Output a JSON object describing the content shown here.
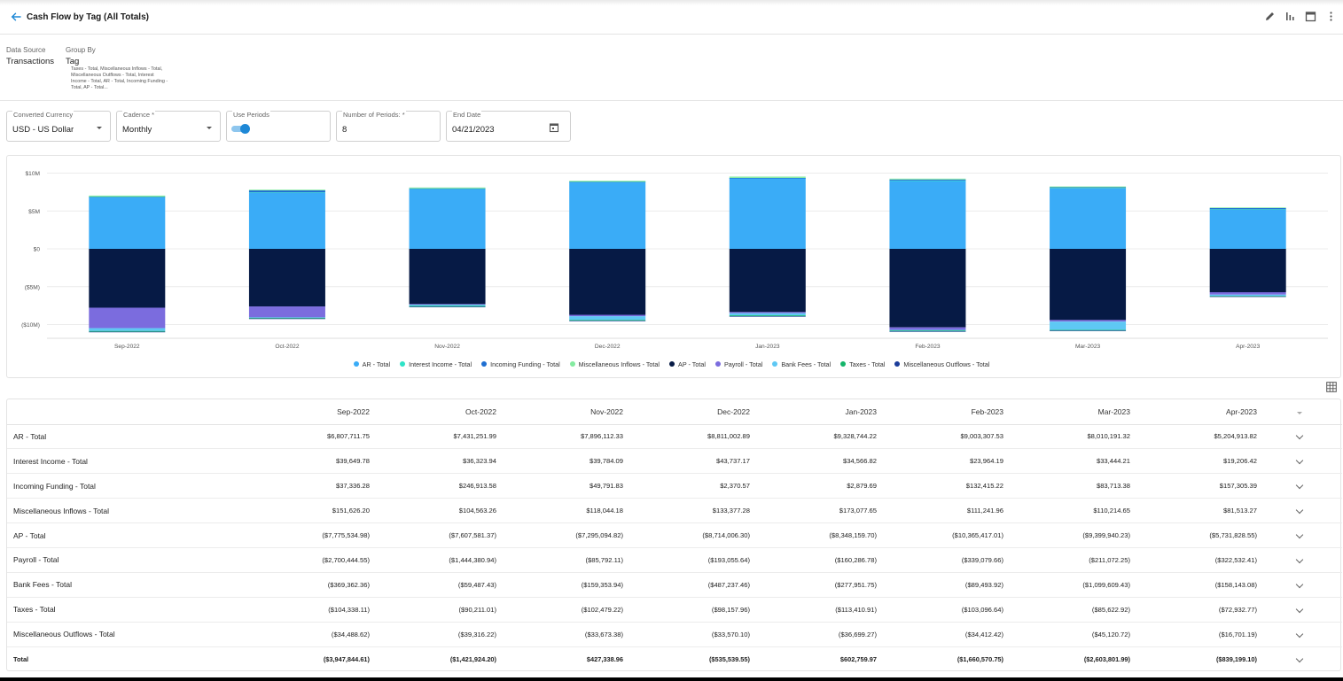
{
  "header": {
    "title": "Cash Flow by Tag (All Totals)"
  },
  "meta": {
    "data_source_label": "Data Source",
    "data_source_value": "Transactions",
    "group_by_label": "Group By",
    "group_by_value": "Tag",
    "group_by_list": "Taxes - Total, Miscellaneous Inflows - Total, Miscellaneous Outflows - Total, Interest Income - Total, AR - Total, Incoming Funding - Total, AP - Total..."
  },
  "filters": {
    "currency_label": "Converted Currency",
    "currency_value": "USD - US Dollar",
    "cadence_label": "Cadence *",
    "cadence_value": "Monthly",
    "use_periods_label": "Use Periods",
    "use_periods_on": true,
    "periods_label": "Number of Periods: *",
    "periods_value": "8",
    "end_date_label": "End Date",
    "end_date_value": "04/21/2023"
  },
  "chart_data": {
    "type": "bar",
    "stacked": true,
    "categories": [
      "Sep-2022",
      "Oct-2022",
      "Nov-2022",
      "Dec-2022",
      "Jan-2023",
      "Feb-2023",
      "Mar-2023",
      "Apr-2023"
    ],
    "ylim": [
      -11000000,
      11000000
    ],
    "yticks": [
      10000000,
      5000000,
      0,
      -5000000,
      -10000000
    ],
    "ytick_labels": [
      "$10M",
      "$5M",
      "$0",
      "($5M)",
      "($10M)"
    ],
    "grid": true,
    "legend_position": "bottom",
    "series": [
      {
        "name": "AR - Total",
        "color": "#3aacf7",
        "values": [
          6807711.75,
          7431251.99,
          7896112.33,
          8811002.89,
          9328744.22,
          9003307.53,
          8010191.32,
          5204913.82
        ]
      },
      {
        "name": "Interest Income - Total",
        "color": "#2ee3c7",
        "values": [
          39649.78,
          36323.94,
          39784.09,
          43737.17,
          34566.82,
          23964.19,
          33444.21,
          19206.42
        ]
      },
      {
        "name": "Incoming Funding - Total",
        "color": "#1f6fd1",
        "values": [
          37336.28,
          246913.58,
          49791.83,
          2370.57,
          2879.69,
          132415.22,
          83713.38,
          157305.39
        ]
      },
      {
        "name": "Miscellaneous Inflows - Total",
        "color": "#84eba0",
        "values": [
          151626.2,
          104563.26,
          118044.18,
          133377.28,
          173077.65,
          111241.96,
          110214.65,
          81513.27
        ]
      },
      {
        "name": "AP - Total",
        "color": "#061a45",
        "values": [
          -7775534.98,
          -7607581.37,
          -7295094.82,
          -8714006.3,
          -8348159.7,
          -10365417.01,
          -9399940.23,
          -5731828.55
        ]
      },
      {
        "name": "Payroll - Total",
        "color": "#7b6cde",
        "values": [
          -2700444.55,
          -1444380.94,
          -85792.11,
          -193055.64,
          -160286.78,
          -339079.66,
          -211072.25,
          -322532.41
        ]
      },
      {
        "name": "Bank Fees - Total",
        "color": "#5ec8f4",
        "values": [
          -369362.36,
          -59487.43,
          -159353.94,
          -487237.46,
          -277951.75,
          -89493.92,
          -1099609.43,
          -158143.08
        ]
      },
      {
        "name": "Taxes - Total",
        "color": "#14b56a",
        "values": [
          -104338.11,
          -90211.01,
          -102479.22,
          -98157.96,
          -113410.91,
          -103096.64,
          -85622.92,
          -72932.77
        ]
      },
      {
        "name": "Miscellaneous Outflows - Total",
        "color": "#1b3c9a",
        "values": [
          -34488.62,
          -39316.22,
          -33673.38,
          -33570.1,
          -36699.27,
          -34412.42,
          -45120.72,
          -16701.19
        ]
      }
    ]
  },
  "table": {
    "columns": [
      "Sep-2022",
      "Oct-2022",
      "Nov-2022",
      "Dec-2022",
      "Jan-2023",
      "Feb-2023",
      "Mar-2023",
      "Apr-2023"
    ],
    "rows": [
      {
        "label": "AR - Total",
        "cells": [
          "$6,807,711.75",
          "$7,431,251.99",
          "$7,896,112.33",
          "$8,811,002.89",
          "$9,328,744.22",
          "$9,003,307.53",
          "$8,010,191.32",
          "$5,204,913.82"
        ]
      },
      {
        "label": "Interest Income - Total",
        "cells": [
          "$39,649.78",
          "$36,323.94",
          "$39,784.09",
          "$43,737.17",
          "$34,566.82",
          "$23,964.19",
          "$33,444.21",
          "$19,206.42"
        ]
      },
      {
        "label": "Incoming Funding - Total",
        "cells": [
          "$37,336.28",
          "$246,913.58",
          "$49,791.83",
          "$2,370.57",
          "$2,879.69",
          "$132,415.22",
          "$83,713.38",
          "$157,305.39"
        ]
      },
      {
        "label": "Miscellaneous Inflows - Total",
        "cells": [
          "$151,626.20",
          "$104,563.26",
          "$118,044.18",
          "$133,377.28",
          "$173,077.65",
          "$111,241.96",
          "$110,214.65",
          "$81,513.27"
        ]
      },
      {
        "label": "AP - Total",
        "cells": [
          "($7,775,534.98)",
          "($7,607,581.37)",
          "($7,295,094.82)",
          "($8,714,006.30)",
          "($8,348,159.70)",
          "($10,365,417.01)",
          "($9,399,940.23)",
          "($5,731,828.55)"
        ]
      },
      {
        "label": "Payroll - Total",
        "cells": [
          "($2,700,444.55)",
          "($1,444,380.94)",
          "($85,792.11)",
          "($193,055.64)",
          "($160,286.78)",
          "($339,079.66)",
          "($211,072.25)",
          "($322,532.41)"
        ]
      },
      {
        "label": "Bank Fees - Total",
        "cells": [
          "($369,362.36)",
          "($59,487.43)",
          "($159,353.94)",
          "($487,237.46)",
          "($277,951.75)",
          "($89,493.92)",
          "($1,099,609.43)",
          "($158,143.08)"
        ]
      },
      {
        "label": "Taxes - Total",
        "cells": [
          "($104,338.11)",
          "($90,211.01)",
          "($102,479.22)",
          "($98,157.96)",
          "($113,410.91)",
          "($103,096.64)",
          "($85,622.92)",
          "($72,932.77)"
        ]
      },
      {
        "label": "Miscellaneous Outflows - Total",
        "cells": [
          "($34,488.62)",
          "($39,316.22)",
          "($33,673.38)",
          "($33,570.10)",
          "($36,699.27)",
          "($34,412.42)",
          "($45,120.72)",
          "($16,701.19)"
        ]
      },
      {
        "label": "Total",
        "cells": [
          "($3,947,844.61)",
          "($1,421,924.20)",
          "$427,338.96",
          "($535,539.55)",
          "$602,759.97",
          "($1,660,570.75)",
          "($2,603,801.99)",
          "($839,199.10)"
        ]
      }
    ]
  },
  "icons": [
    "back-arrow-icon",
    "edit-pencil-icon",
    "chart-type-icon",
    "calendar-icon",
    "more-vert-icon",
    "table-grid-icon",
    "chevron-down-icon"
  ]
}
